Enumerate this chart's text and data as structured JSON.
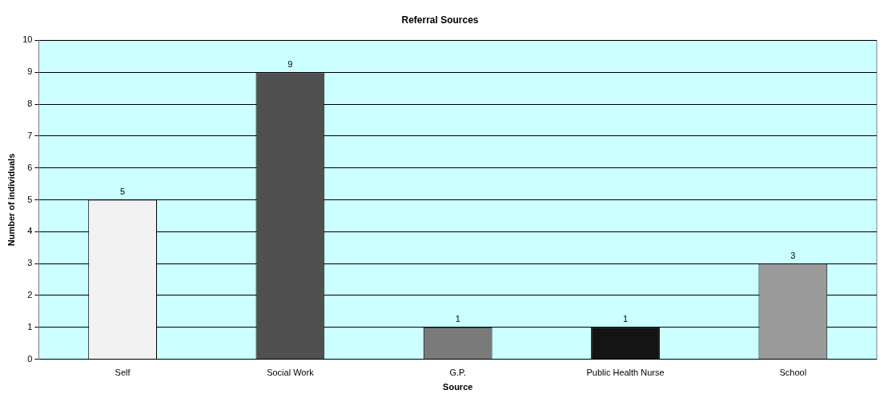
{
  "chart_data": {
    "type": "bar",
    "title": "Referral Sources",
    "xlabel": "Source",
    "ylabel": "Number of individuals",
    "categories": [
      "Self",
      "Social Work",
      "G.P.",
      "Public Health Nurse",
      "School"
    ],
    "values": [
      5,
      9,
      1,
      1,
      3
    ],
    "colors": [
      "#f2f2f2",
      "#505050",
      "#7a7a7a",
      "#141414",
      "#9a9a9a"
    ],
    "ylim": [
      0,
      10
    ],
    "yticks": [
      0,
      1,
      2,
      3,
      4,
      5,
      6,
      7,
      8,
      9,
      10
    ],
    "grid": "y",
    "legend": false,
    "data_labels": true
  }
}
